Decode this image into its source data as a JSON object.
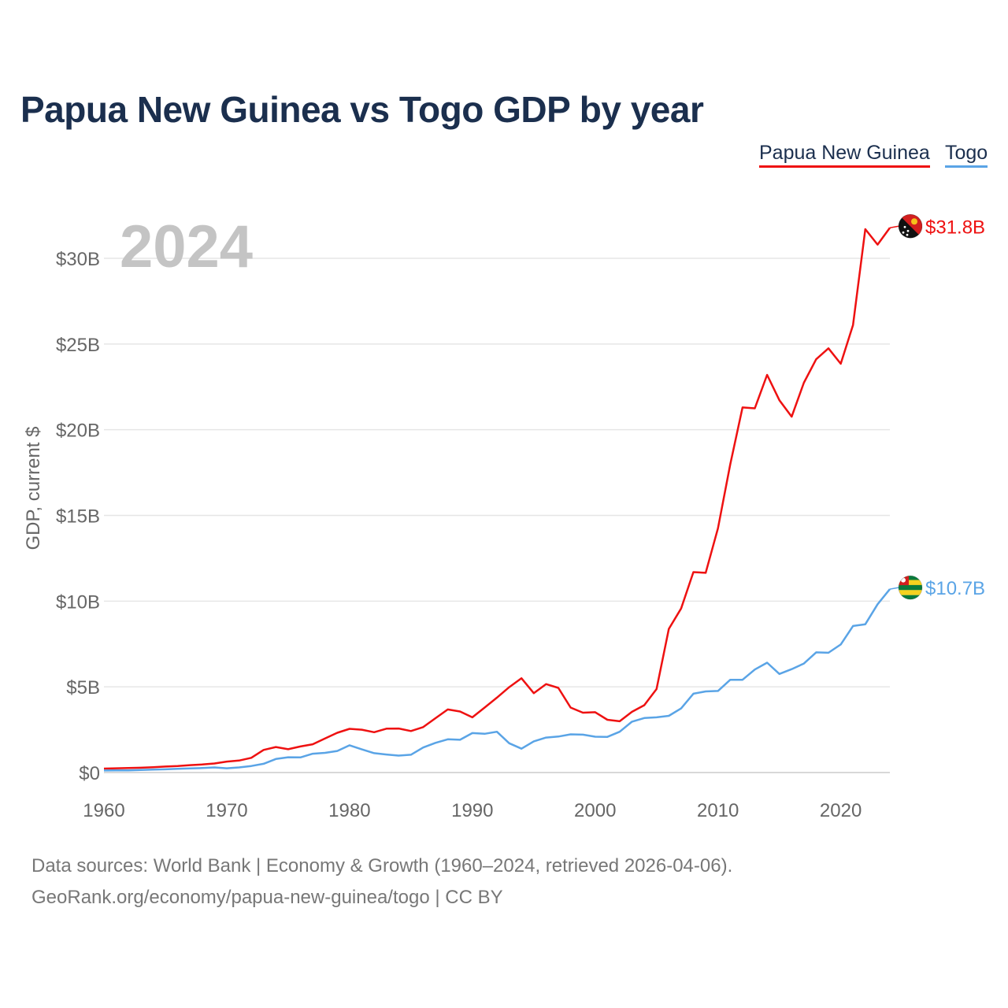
{
  "title": "Papua New Guinea vs Togo GDP by year",
  "legend": [
    {
      "label": "Papua New Guinea",
      "color": "#ee1111"
    },
    {
      "label": "Togo",
      "color": "#5aa4e6"
    }
  ],
  "year_watermark": "2024",
  "source": {
    "line1": "Data sources: World Bank | Economy & Growth (1960–2024, retrieved 2026-04-06).",
    "line2": "GeoRank.org/economy/papua-new-guinea/togo | CC BY"
  },
  "chart_data": {
    "type": "line",
    "title": "Papua New Guinea vs Togo GDP by year",
    "xlabel": "",
    "ylabel": "GDP, current $",
    "xlim": [
      1960,
      2024
    ],
    "ylim": [
      0,
      33
    ],
    "grid": true,
    "legend_position": "top-right",
    "x_ticks": [
      1960,
      1970,
      1980,
      1990,
      2000,
      2010,
      2020
    ],
    "x_tick_labels": [
      "1960",
      "1970",
      "1980",
      "1990",
      "2000",
      "2010",
      "2020"
    ],
    "y_ticks": [
      0,
      5,
      10,
      15,
      20,
      25,
      30
    ],
    "y_tick_labels": [
      "$0",
      "$5B",
      "$10B",
      "$15B",
      "$20B",
      "$25B",
      "$30B"
    ],
    "units": "billions of current US dollars",
    "x": [
      1960,
      1961,
      1962,
      1963,
      1964,
      1965,
      1966,
      1967,
      1968,
      1969,
      1970,
      1971,
      1972,
      1973,
      1974,
      1975,
      1976,
      1977,
      1978,
      1979,
      1980,
      1981,
      1982,
      1983,
      1984,
      1985,
      1986,
      1987,
      1988,
      1989,
      1990,
      1991,
      1992,
      1993,
      1994,
      1995,
      1996,
      1997,
      1998,
      1999,
      2000,
      2001,
      2002,
      2003,
      2004,
      2005,
      2006,
      2007,
      2008,
      2009,
      2010,
      2011,
      2012,
      2013,
      2014,
      2015,
      2016,
      2017,
      2018,
      2019,
      2020,
      2021,
      2022,
      2023,
      2024
    ],
    "series": [
      {
        "name": "Papua New Guinea",
        "color": "#ee1111",
        "end_label": "$31.8B",
        "values": [
          0.23,
          0.25,
          0.26,
          0.28,
          0.31,
          0.35,
          0.38,
          0.43,
          0.47,
          0.53,
          0.64,
          0.7,
          0.86,
          1.32,
          1.49,
          1.36,
          1.52,
          1.65,
          1.99,
          2.32,
          2.55,
          2.5,
          2.35,
          2.56,
          2.57,
          2.42,
          2.65,
          3.17,
          3.68,
          3.56,
          3.22,
          3.79,
          4.37,
          4.98,
          5.5,
          4.63,
          5.16,
          4.94,
          3.79,
          3.49,
          3.52,
          3.08,
          2.99,
          3.54,
          3.93,
          4.87,
          8.38,
          9.57,
          11.69,
          11.65,
          14.25,
          17.98,
          21.3,
          21.25,
          23.2,
          21.72,
          20.76,
          22.74,
          24.11,
          24.75,
          23.85,
          26.11,
          31.7,
          30.8,
          31.78
        ]
      },
      {
        "name": "Togo",
        "color": "#5aa4e6",
        "end_label": "$10.7B",
        "values": [
          0.12,
          0.13,
          0.13,
          0.15,
          0.17,
          0.19,
          0.22,
          0.24,
          0.26,
          0.3,
          0.25,
          0.3,
          0.38,
          0.51,
          0.79,
          0.89,
          0.88,
          1.1,
          1.15,
          1.26,
          1.59,
          1.35,
          1.13,
          1.05,
          0.99,
          1.04,
          1.46,
          1.73,
          1.94,
          1.91,
          2.3,
          2.26,
          2.38,
          1.71,
          1.39,
          1.82,
          2.04,
          2.1,
          2.23,
          2.21,
          2.09,
          2.08,
          2.38,
          2.97,
          3.18,
          3.22,
          3.31,
          3.74,
          4.6,
          4.73,
          4.76,
          5.41,
          5.41,
          6.01,
          6.41,
          5.75,
          6.03,
          6.36,
          7.01,
          6.99,
          7.47,
          8.55,
          8.65,
          9.82,
          10.7
        ]
      }
    ]
  }
}
